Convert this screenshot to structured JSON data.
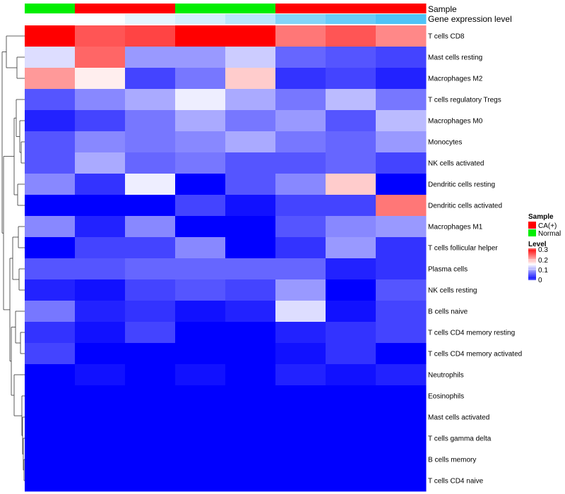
{
  "chart_data": {
    "type": "heatmap",
    "annotation_titles": [
      "Sample",
      "Gene expression level"
    ],
    "columns": [
      {
        "sample": "Normal",
        "expr_level": 0.0
      },
      {
        "sample": "CA(+)",
        "expr_level": 0.02
      },
      {
        "sample": "CA(+)",
        "expr_level": 0.15
      },
      {
        "sample": "Normal",
        "expr_level": 0.25
      },
      {
        "sample": "Normal",
        "expr_level": 0.4
      },
      {
        "sample": "CA(+)",
        "expr_level": 0.7
      },
      {
        "sample": "CA(+)",
        "expr_level": 0.85
      },
      {
        "sample": "CA(+)",
        "expr_level": 1.0
      }
    ],
    "sample_colors": {
      "CA(+)": "#ff0000",
      "Normal": "#00ee00"
    },
    "expr_colors": {
      "low": "#ffffff",
      "high": "#4fc3f7"
    },
    "rows": [
      "T cells CD8",
      "Mast cells resting",
      "Macrophages M2",
      "T cells regulatory  Tregs",
      "Macrophages M0",
      "Monocytes",
      "NK cells activated",
      "Dendritic cells resting",
      "Dendritic cells activated",
      "Macrophages M1",
      "T cells follicular helper",
      "Plasma cells",
      "NK cells resting",
      "B cells naive",
      "T cells CD4 memory resting",
      "T cells CD4 memory activated",
      "Neutrophils",
      "Eosinophils",
      "Mast cells activated",
      "T cells gamma delta",
      "B cells memory",
      "T cells CD4 naive"
    ],
    "values": [
      [
        0.3,
        0.25,
        0.26,
        0.3,
        0.3,
        0.23,
        0.25,
        0.22
      ],
      [
        0.13,
        0.24,
        0.09,
        0.09,
        0.12,
        0.06,
        0.05,
        0.04
      ],
      [
        0.21,
        0.16,
        0.04,
        0.07,
        0.18,
        0.03,
        0.04,
        0.02
      ],
      [
        0.05,
        0.08,
        0.1,
        0.14,
        0.1,
        0.07,
        0.11,
        0.07
      ],
      [
        0.02,
        0.04,
        0.07,
        0.1,
        0.07,
        0.09,
        0.05,
        0.11
      ],
      [
        0.05,
        0.08,
        0.07,
        0.08,
        0.1,
        0.07,
        0.06,
        0.09
      ],
      [
        0.05,
        0.1,
        0.06,
        0.07,
        0.05,
        0.05,
        0.06,
        0.04
      ],
      [
        0.08,
        0.03,
        0.14,
        0.0,
        0.05,
        0.08,
        0.18,
        0.0
      ],
      [
        0.0,
        0.0,
        0.0,
        0.04,
        0.01,
        0.04,
        0.04,
        0.23
      ],
      [
        0.08,
        0.02,
        0.08,
        0.0,
        0.0,
        0.05,
        0.08,
        0.09
      ],
      [
        0.0,
        0.04,
        0.04,
        0.08,
        0.0,
        0.03,
        0.09,
        0.03
      ],
      [
        0.05,
        0.05,
        0.06,
        0.06,
        0.06,
        0.06,
        0.02,
        0.03
      ],
      [
        0.02,
        0.01,
        0.04,
        0.05,
        0.04,
        0.09,
        0.0,
        0.05
      ],
      [
        0.07,
        0.02,
        0.03,
        0.01,
        0.02,
        0.13,
        0.01,
        0.04
      ],
      [
        0.03,
        0.01,
        0.04,
        0.0,
        0.0,
        0.02,
        0.03,
        0.04
      ],
      [
        0.04,
        0.0,
        0.0,
        0.0,
        0.0,
        0.01,
        0.03,
        0.0
      ],
      [
        0.0,
        0.01,
        0.0,
        0.01,
        0.0,
        0.02,
        0.01,
        0.02
      ],
      [
        0.0,
        0.0,
        0.0,
        0.0,
        0.0,
        0.0,
        0.0,
        0.0
      ],
      [
        0.0,
        0.0,
        0.0,
        0.0,
        0.0,
        0.0,
        0.0,
        0.0
      ],
      [
        0.0,
        0.0,
        0.0,
        0.0,
        0.0,
        0.0,
        0.0,
        0.0
      ],
      [
        0.0,
        0.0,
        0.0,
        0.0,
        0.0,
        0.0,
        0.0,
        0.0
      ],
      [
        0.0,
        0.0,
        0.0,
        0.0,
        0.0,
        0.0,
        0.0,
        0.0
      ]
    ],
    "color_scale": {
      "min": 0,
      "mid": 0.15,
      "max": 0.3,
      "low": "#0000ff",
      "mid_color": "#ffffff",
      "high": "#ff0000"
    },
    "dendrogram": "rows, hierarchical clustering",
    "legend": {
      "position": "right",
      "sample_title": "Sample",
      "sample_entries": [
        "CA(+)",
        "Normal"
      ],
      "level_title": "Level",
      "level_ticks": [
        "0.3",
        "0.2",
        "0.1",
        "0"
      ]
    }
  }
}
